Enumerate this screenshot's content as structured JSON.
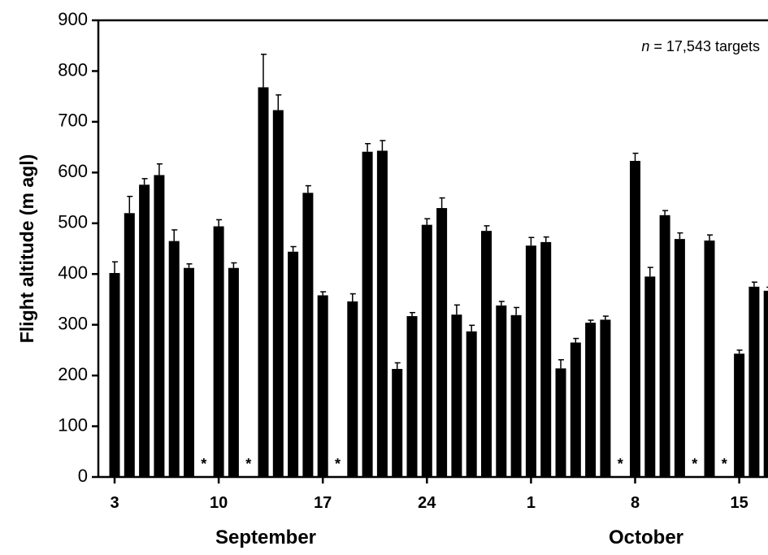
{
  "chart_data": {
    "type": "bar",
    "ylabel": "Flight altitude (m agl)",
    "ylim": [
      0,
      900
    ],
    "yticks": [
      "0",
      "100",
      "200",
      "300",
      "400",
      "500",
      "600",
      "700",
      "800",
      "900"
    ],
    "xtick_labels": [
      {
        "day": 3,
        "label": "3"
      },
      {
        "day": 10,
        "label": "10"
      },
      {
        "day": 17,
        "label": "17"
      },
      {
        "day": 24,
        "label": "24"
      },
      {
        "day": 31,
        "label": "1"
      },
      {
        "day": 38,
        "label": "8"
      },
      {
        "day": 45,
        "label": "15"
      }
    ],
    "month_labels": [
      "September",
      "October"
    ],
    "annotation": {
      "italic": "n",
      "text": " = 17,543 targets"
    },
    "grid": false,
    "series": [
      {
        "points": [
          {
            "day": 3,
            "value": 402,
            "error": 22
          },
          {
            "day": 4,
            "value": 520,
            "error": 33
          },
          {
            "day": 5,
            "value": 576,
            "error": 12
          },
          {
            "day": 6,
            "value": 595,
            "error": 22
          },
          {
            "day": 7,
            "value": 465,
            "error": 22
          },
          {
            "day": 8,
            "value": 412,
            "error": 8
          },
          {
            "day": 9,
            "value": null,
            "missing": true
          },
          {
            "day": 10,
            "value": 494,
            "error": 13
          },
          {
            "day": 11,
            "value": 412,
            "error": 10
          },
          {
            "day": 12,
            "value": null,
            "missing": true
          },
          {
            "day": 13,
            "value": 768,
            "error": 65
          },
          {
            "day": 14,
            "value": 723,
            "error": 30
          },
          {
            "day": 15,
            "value": 444,
            "error": 10
          },
          {
            "day": 16,
            "value": 560,
            "error": 14
          },
          {
            "day": 17,
            "value": 358,
            "error": 7
          },
          {
            "day": 18,
            "value": null,
            "missing": true
          },
          {
            "day": 19,
            "value": 346,
            "error": 15
          },
          {
            "day": 20,
            "value": 641,
            "error": 16
          },
          {
            "day": 21,
            "value": 643,
            "error": 20
          },
          {
            "day": 22,
            "value": 213,
            "error": 12
          },
          {
            "day": 23,
            "value": 317,
            "error": 7
          },
          {
            "day": 24,
            "value": 497,
            "error": 12
          },
          {
            "day": 25,
            "value": 530,
            "error": 20
          },
          {
            "day": 26,
            "value": 320,
            "error": 19
          },
          {
            "day": 27,
            "value": 287,
            "error": 12
          },
          {
            "day": 28,
            "value": 485,
            "error": 10
          },
          {
            "day": 29,
            "value": 338,
            "error": 8
          },
          {
            "day": 30,
            "value": 319,
            "error": 15
          },
          {
            "day": 31,
            "value": 456,
            "error": 16
          },
          {
            "day": 32,
            "value": 463,
            "error": 10
          },
          {
            "day": 33,
            "value": 214,
            "error": 17
          },
          {
            "day": 34,
            "value": 265,
            "error": 8
          },
          {
            "day": 35,
            "value": 304,
            "error": 5
          },
          {
            "day": 36,
            "value": 310,
            "error": 7
          },
          {
            "day": 37,
            "value": null,
            "missing": true
          },
          {
            "day": 38,
            "value": 623,
            "error": 15
          },
          {
            "day": 39,
            "value": 395,
            "error": 18
          },
          {
            "day": 40,
            "value": 516,
            "error": 9
          },
          {
            "day": 41,
            "value": 469,
            "error": 12
          },
          {
            "day": 42,
            "value": null,
            "missing": true
          },
          {
            "day": 43,
            "value": 466,
            "error": 11
          },
          {
            "day": 44,
            "value": null,
            "missing": true
          },
          {
            "day": 45,
            "value": 243,
            "error": 7
          },
          {
            "day": 46,
            "value": 375,
            "error": 9
          },
          {
            "day": 47,
            "value": 367,
            "error": 7
          }
        ]
      }
    ],
    "missing_marker": "*"
  }
}
